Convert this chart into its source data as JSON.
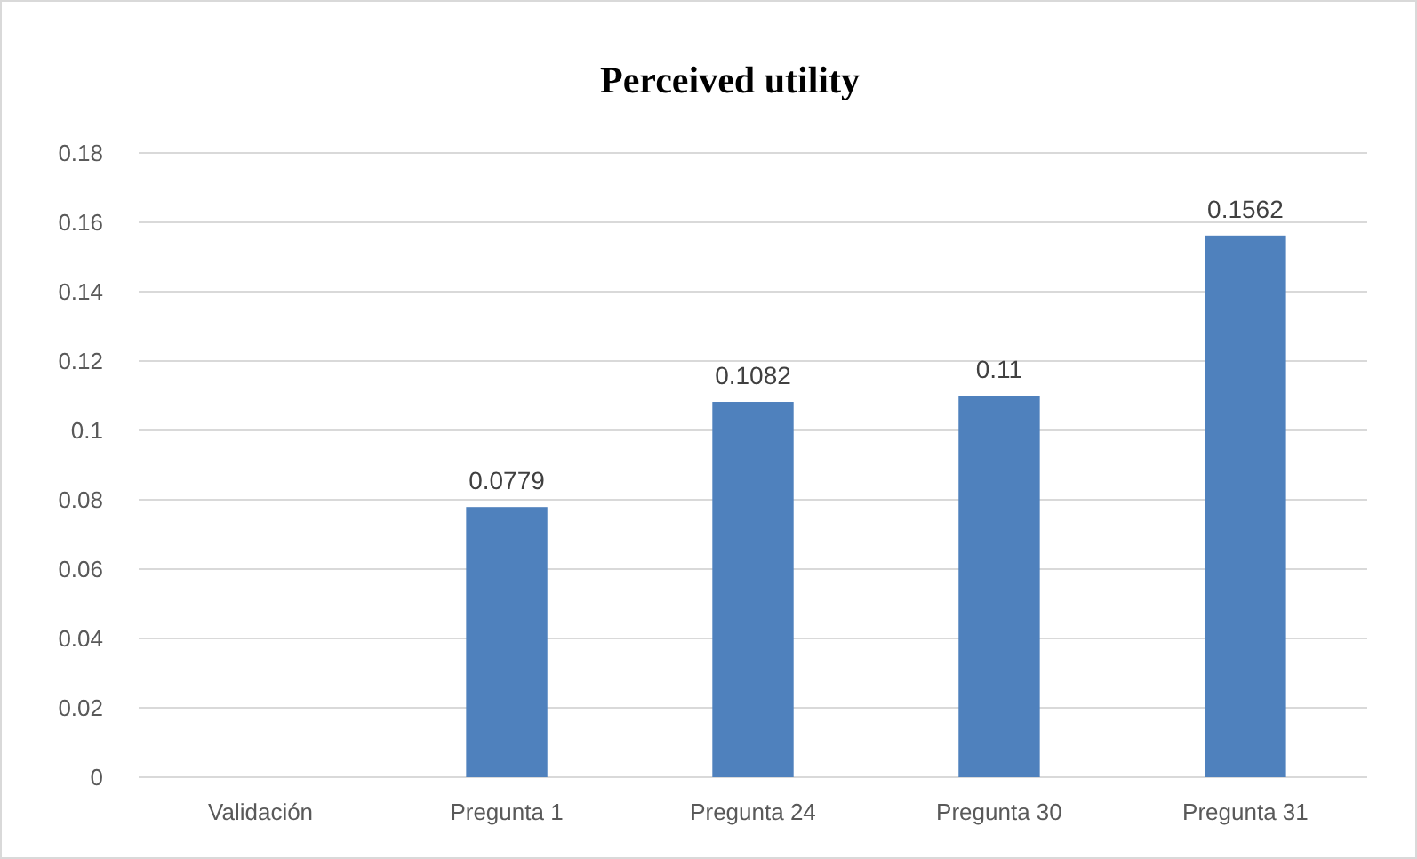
{
  "chart_data": {
    "type": "bar",
    "title": "Perceived utility",
    "categories": [
      "Validación",
      "Pregunta 1",
      "Pregunta 24",
      "Pregunta 30",
      "Pregunta 31"
    ],
    "values": [
      null,
      0.0779,
      0.1082,
      0.11,
      0.1562
    ],
    "value_labels": [
      null,
      "0.0779",
      "0.1082",
      "0.11",
      "0.1562"
    ],
    "color": "#4f81bd",
    "ylim": [
      0,
      0.18
    ],
    "yticks": [
      0,
      0.02,
      0.04,
      0.06,
      0.08,
      0.1,
      0.12,
      0.14,
      0.16,
      0.18
    ],
    "grid": "y"
  }
}
